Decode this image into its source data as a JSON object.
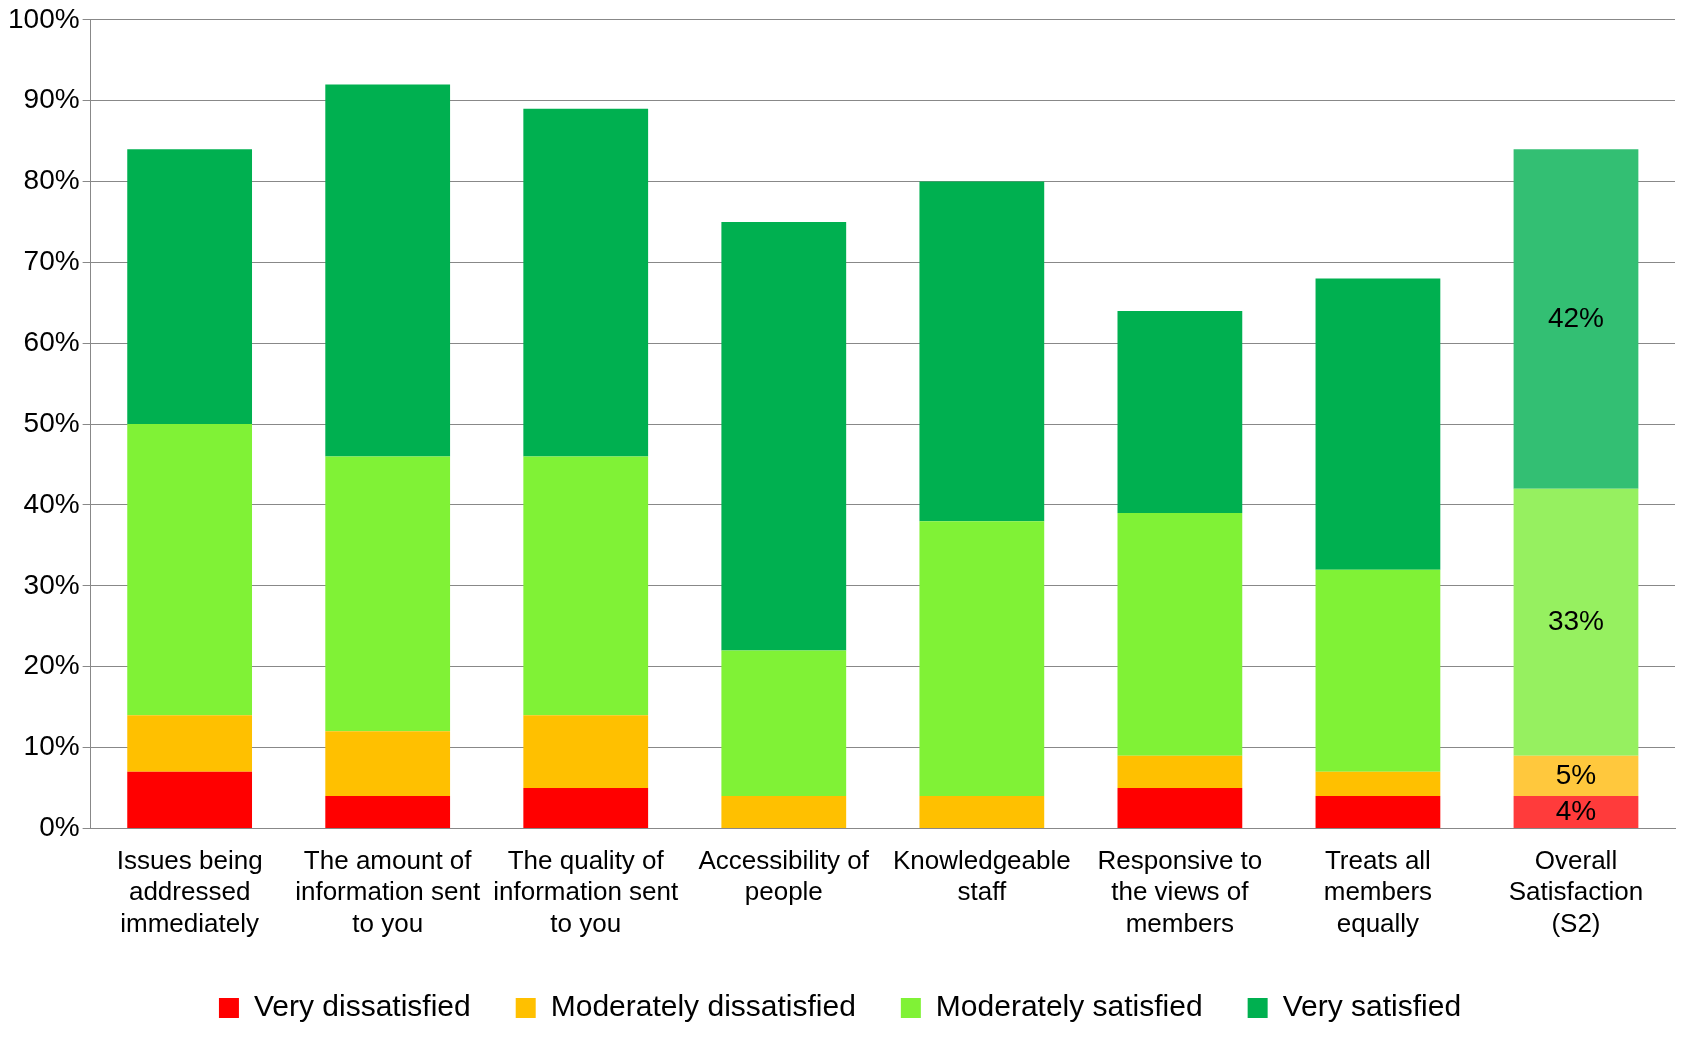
{
  "chart_data": {
    "type": "bar",
    "stacked": true,
    "categories": [
      "Issues being addressed immediately",
      "The amount of information sent to you",
      "The quality of information sent to you",
      "Accessibility of people",
      "Knowledgeable staff",
      "Responsive to the views of members",
      "Treats all members equally",
      "Overall Satisfaction (S2)"
    ],
    "series": [
      {
        "name": "Very dissatisfied",
        "color": "#ff0000",
        "colors": [
          "#ff0000",
          "#ff0000",
          "#ff0000",
          "#ff0000",
          "#ff0000",
          "#ff0000",
          "#ff0000",
          "#ff3b3b"
        ],
        "values": [
          7,
          4,
          5,
          0,
          0,
          5,
          4,
          4
        ],
        "value_labels": [
          null,
          null,
          null,
          null,
          null,
          null,
          null,
          "4%"
        ]
      },
      {
        "name": "Moderately dissatisfied",
        "color": "#ffc000",
        "colors": [
          "#ffc000",
          "#ffc000",
          "#ffc000",
          "#ffc000",
          "#ffc000",
          "#ffc000",
          "#ffc000",
          "#ffc83d"
        ],
        "values": [
          7,
          8,
          9,
          4,
          4,
          4,
          3,
          5
        ],
        "value_labels": [
          null,
          null,
          null,
          null,
          null,
          null,
          null,
          "5%"
        ]
      },
      {
        "name": "Moderately satisfied",
        "color": "#80f236",
        "colors": [
          "#80f236",
          "#80f236",
          "#80f236",
          "#80f236",
          "#80f236",
          "#80f236",
          "#80f236",
          "#96f060"
        ],
        "values": [
          36,
          34,
          32,
          18,
          34,
          30,
          25,
          33
        ],
        "value_labels": [
          null,
          null,
          null,
          null,
          null,
          null,
          null,
          "33%"
        ]
      },
      {
        "name": "Very satisfied",
        "color": "#00b050",
        "colors": [
          "#00b050",
          "#00b050",
          "#00b050",
          "#00b050",
          "#00b050",
          "#00b050",
          "#00b050",
          "#33bf73"
        ],
        "values": [
          34,
          46,
          43,
          53,
          42,
          25,
          36,
          42
        ],
        "value_labels": [
          null,
          null,
          null,
          null,
          null,
          null,
          null,
          "42%"
        ]
      }
    ],
    "ylim": [
      0,
      100
    ],
    "yticks": [
      {
        "value": 0,
        "label": "0%"
      },
      {
        "value": 10,
        "label": "10%"
      },
      {
        "value": 20,
        "label": "20%"
      },
      {
        "value": 30,
        "label": "30%"
      },
      {
        "value": 40,
        "label": "40%"
      },
      {
        "value": 50,
        "label": "50%"
      },
      {
        "value": 60,
        "label": "60%"
      },
      {
        "value": 70,
        "label": "70%"
      },
      {
        "value": 80,
        "label": "80%"
      },
      {
        "value": 90,
        "label": "90%"
      },
      {
        "value": 100,
        "label": "100%"
      }
    ],
    "grid": "y",
    "legend": "bottom"
  }
}
